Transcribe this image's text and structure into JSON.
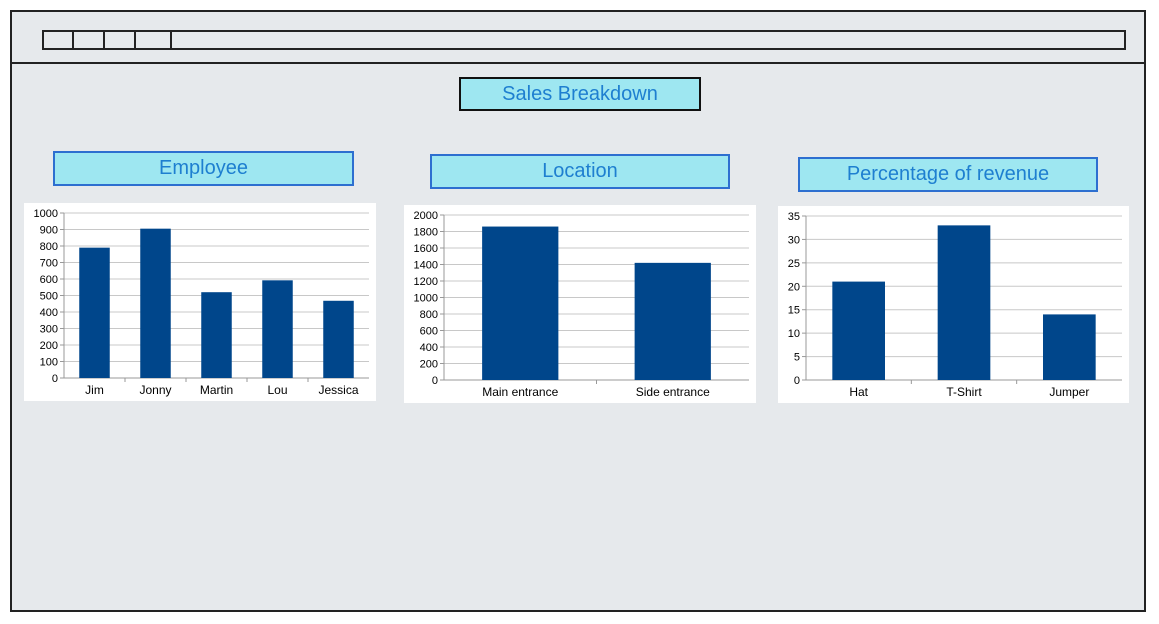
{
  "page": {
    "title": "Sales Breakdown",
    "bar_color": "#00468b",
    "label_bg": "#9ee7f1",
    "label_text_color": "#1e7fd0"
  },
  "sections": [
    {
      "title": "Employee"
    },
    {
      "title": "Location"
    },
    {
      "title": "Percentage of revenue"
    }
  ],
  "chart_data": [
    {
      "type": "bar",
      "title": "",
      "categories": [
        "Jim",
        "Jonny",
        "Martin",
        "Lou",
        "Jessica"
      ],
      "values": [
        790,
        905,
        520,
        592,
        468
      ],
      "ylim": [
        0,
        1000
      ],
      "yticks": [
        0,
        100,
        200,
        300,
        400,
        500,
        600,
        700,
        800,
        900,
        1000
      ],
      "grid": true
    },
    {
      "type": "bar",
      "title": "",
      "categories": [
        "Main entrance",
        "Side entrance"
      ],
      "values": [
        1860,
        1420
      ],
      "ylim": [
        0,
        2000
      ],
      "yticks": [
        0,
        200,
        400,
        600,
        800,
        1000,
        1200,
        1400,
        1600,
        1800,
        2000
      ],
      "grid": true
    },
    {
      "type": "bar",
      "title": "",
      "categories": [
        "Hat",
        "T-Shirt",
        "Jumper"
      ],
      "values": [
        21,
        33,
        14
      ],
      "ylim": [
        0,
        35
      ],
      "yticks": [
        0,
        5,
        10,
        15,
        20,
        25,
        30,
        35
      ],
      "grid": true
    }
  ]
}
